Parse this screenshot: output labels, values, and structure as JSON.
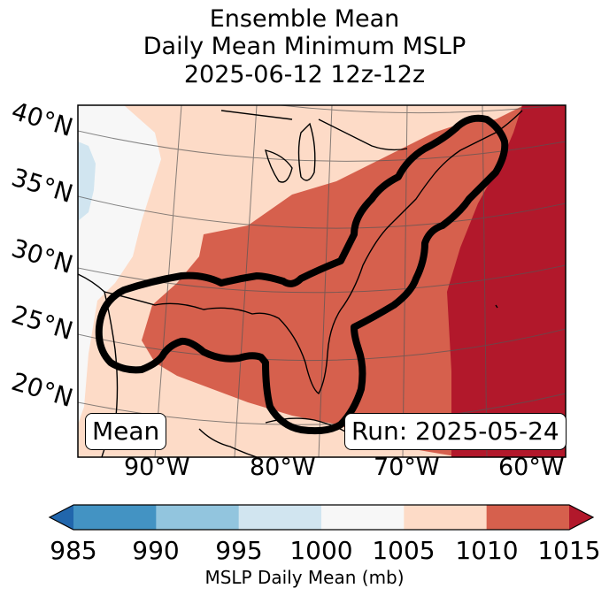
{
  "title": {
    "line1": "Ensemble Mean",
    "line2": "Daily Mean Minimum MSLP",
    "line3": "2025-06-12 12z-12z"
  },
  "map": {
    "lat_labels": [
      "40°N",
      "35°N",
      "30°N",
      "25°N",
      "20°N"
    ],
    "lon_labels": [
      "90°W",
      "80°W",
      "70°W",
      "60°W"
    ],
    "mean_label": "Mean",
    "run_label": "Run: 2025-05-24",
    "zones": [
      {
        "range": "1000-1005",
        "color": "#f7f7f7"
      },
      {
        "range": "995-1000",
        "color": "#d1e5f0"
      },
      {
        "range": "1005-1010",
        "color": "#fddbc7"
      },
      {
        "range": "1010-1015",
        "color": "#d6604d"
      },
      {
        "range": ">1015",
        "color": "#b2182b"
      }
    ]
  },
  "colorbar": {
    "ticks": [
      "985",
      "990",
      "995",
      "1000",
      "1005",
      "1010",
      "1015"
    ],
    "segments": [
      "#2166ac",
      "#4393c3",
      "#92c5de",
      "#d1e5f0",
      "#f7f7f7",
      "#fddbc7",
      "#d6604d",
      "#b2182b"
    ],
    "label": "MSLP Daily Mean (mb)"
  }
}
